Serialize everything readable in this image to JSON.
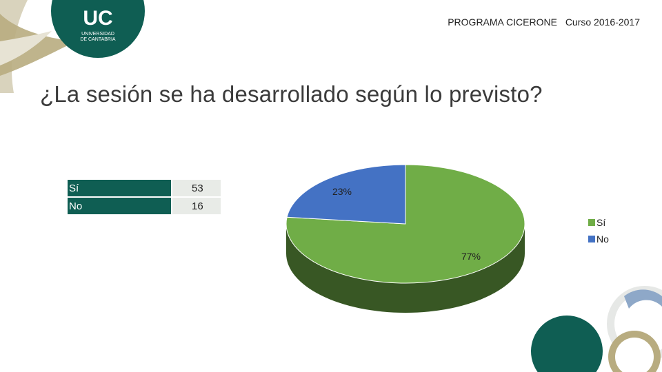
{
  "header": {
    "program": "PROGRAMA CICERONE",
    "course": "Curso 2016-2017"
  },
  "logo": {
    "initials": "UC",
    "line1": "UNIVERSIDAD",
    "line2": "DE CANTABRIA"
  },
  "title": "¿La sesión se ha desarrollado según lo previsto?",
  "table": {
    "rows": [
      {
        "label": "Sí",
        "value": "53"
      },
      {
        "label": "No",
        "value": "16"
      }
    ]
  },
  "chart_data": {
    "type": "pie",
    "style": "3d",
    "categories": [
      "Sí",
      "No"
    ],
    "values": [
      53,
      16
    ],
    "percent_labels": [
      "77%",
      "23%"
    ],
    "colors": [
      "#70ad47",
      "#4472c4"
    ],
    "legend_position": "right"
  },
  "colors": {
    "brand_dark": "#0f5e53",
    "table_value_bg": "#e8ebe7"
  }
}
